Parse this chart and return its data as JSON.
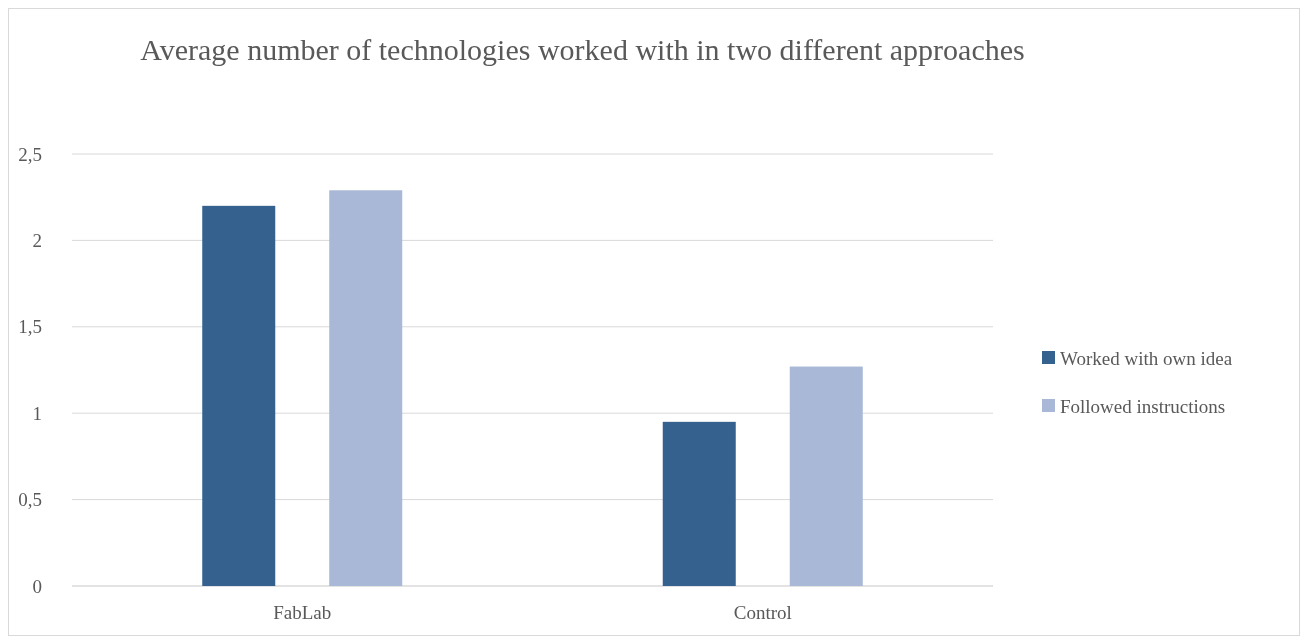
{
  "chart_data": {
    "type": "bar",
    "title": "Average number of technologies worked with in two different approaches",
    "categories": [
      "FabLab",
      "Control"
    ],
    "series": [
      {
        "name": "Worked with own idea",
        "color": "#35618f",
        "values": [
          2.2,
          0.95
        ]
      },
      {
        "name": "Followed instructions",
        "color": "#a9b8d6",
        "values": [
          2.29,
          1.27
        ]
      }
    ],
    "ylim": [
      0,
      2.5
    ],
    "yticks": [
      0,
      {
        "value": 0.5,
        "label": "0,5"
      },
      1,
      {
        "value": 1.5,
        "label": "1,5"
      },
      2,
      {
        "value": 2.5,
        "label": "2,5"
      }
    ],
    "grid": "y",
    "legend": "right"
  }
}
